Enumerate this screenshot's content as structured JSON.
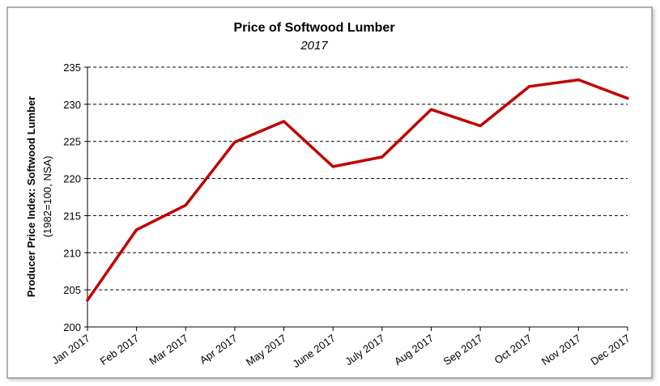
{
  "chart_data": {
    "type": "line",
    "title": "Price of Softwood Lumber",
    "subtitle": "2017",
    "ylabel": "Producer Price Index: Softwood Lumber",
    "ylabel_sub": "(1982=100, NSA)",
    "xlabel": "",
    "categories": [
      "Jan 2017",
      "Feb 2017",
      "Mar 2017",
      "Apr 2017",
      "May 2017",
      "June 2017",
      "July 2017",
      "Aug 2017",
      "Sep 2017",
      "Oct 2017",
      "Nov 2017",
      "Dec 2017"
    ],
    "series": [
      {
        "values": [
          203.6,
          213.1,
          216.4,
          224.9,
          227.7,
          221.6,
          222.9,
          229.3,
          227.1,
          232.4,
          233.3,
          230.8
        ]
      }
    ],
    "ylim": [
      200,
      235
    ],
    "yticks": [
      "200",
      "205",
      "210",
      "215",
      "220",
      "225",
      "230",
      "235"
    ],
    "grid": "horizontal-dashed",
    "legend": "none",
    "line_color": "#C00000"
  }
}
